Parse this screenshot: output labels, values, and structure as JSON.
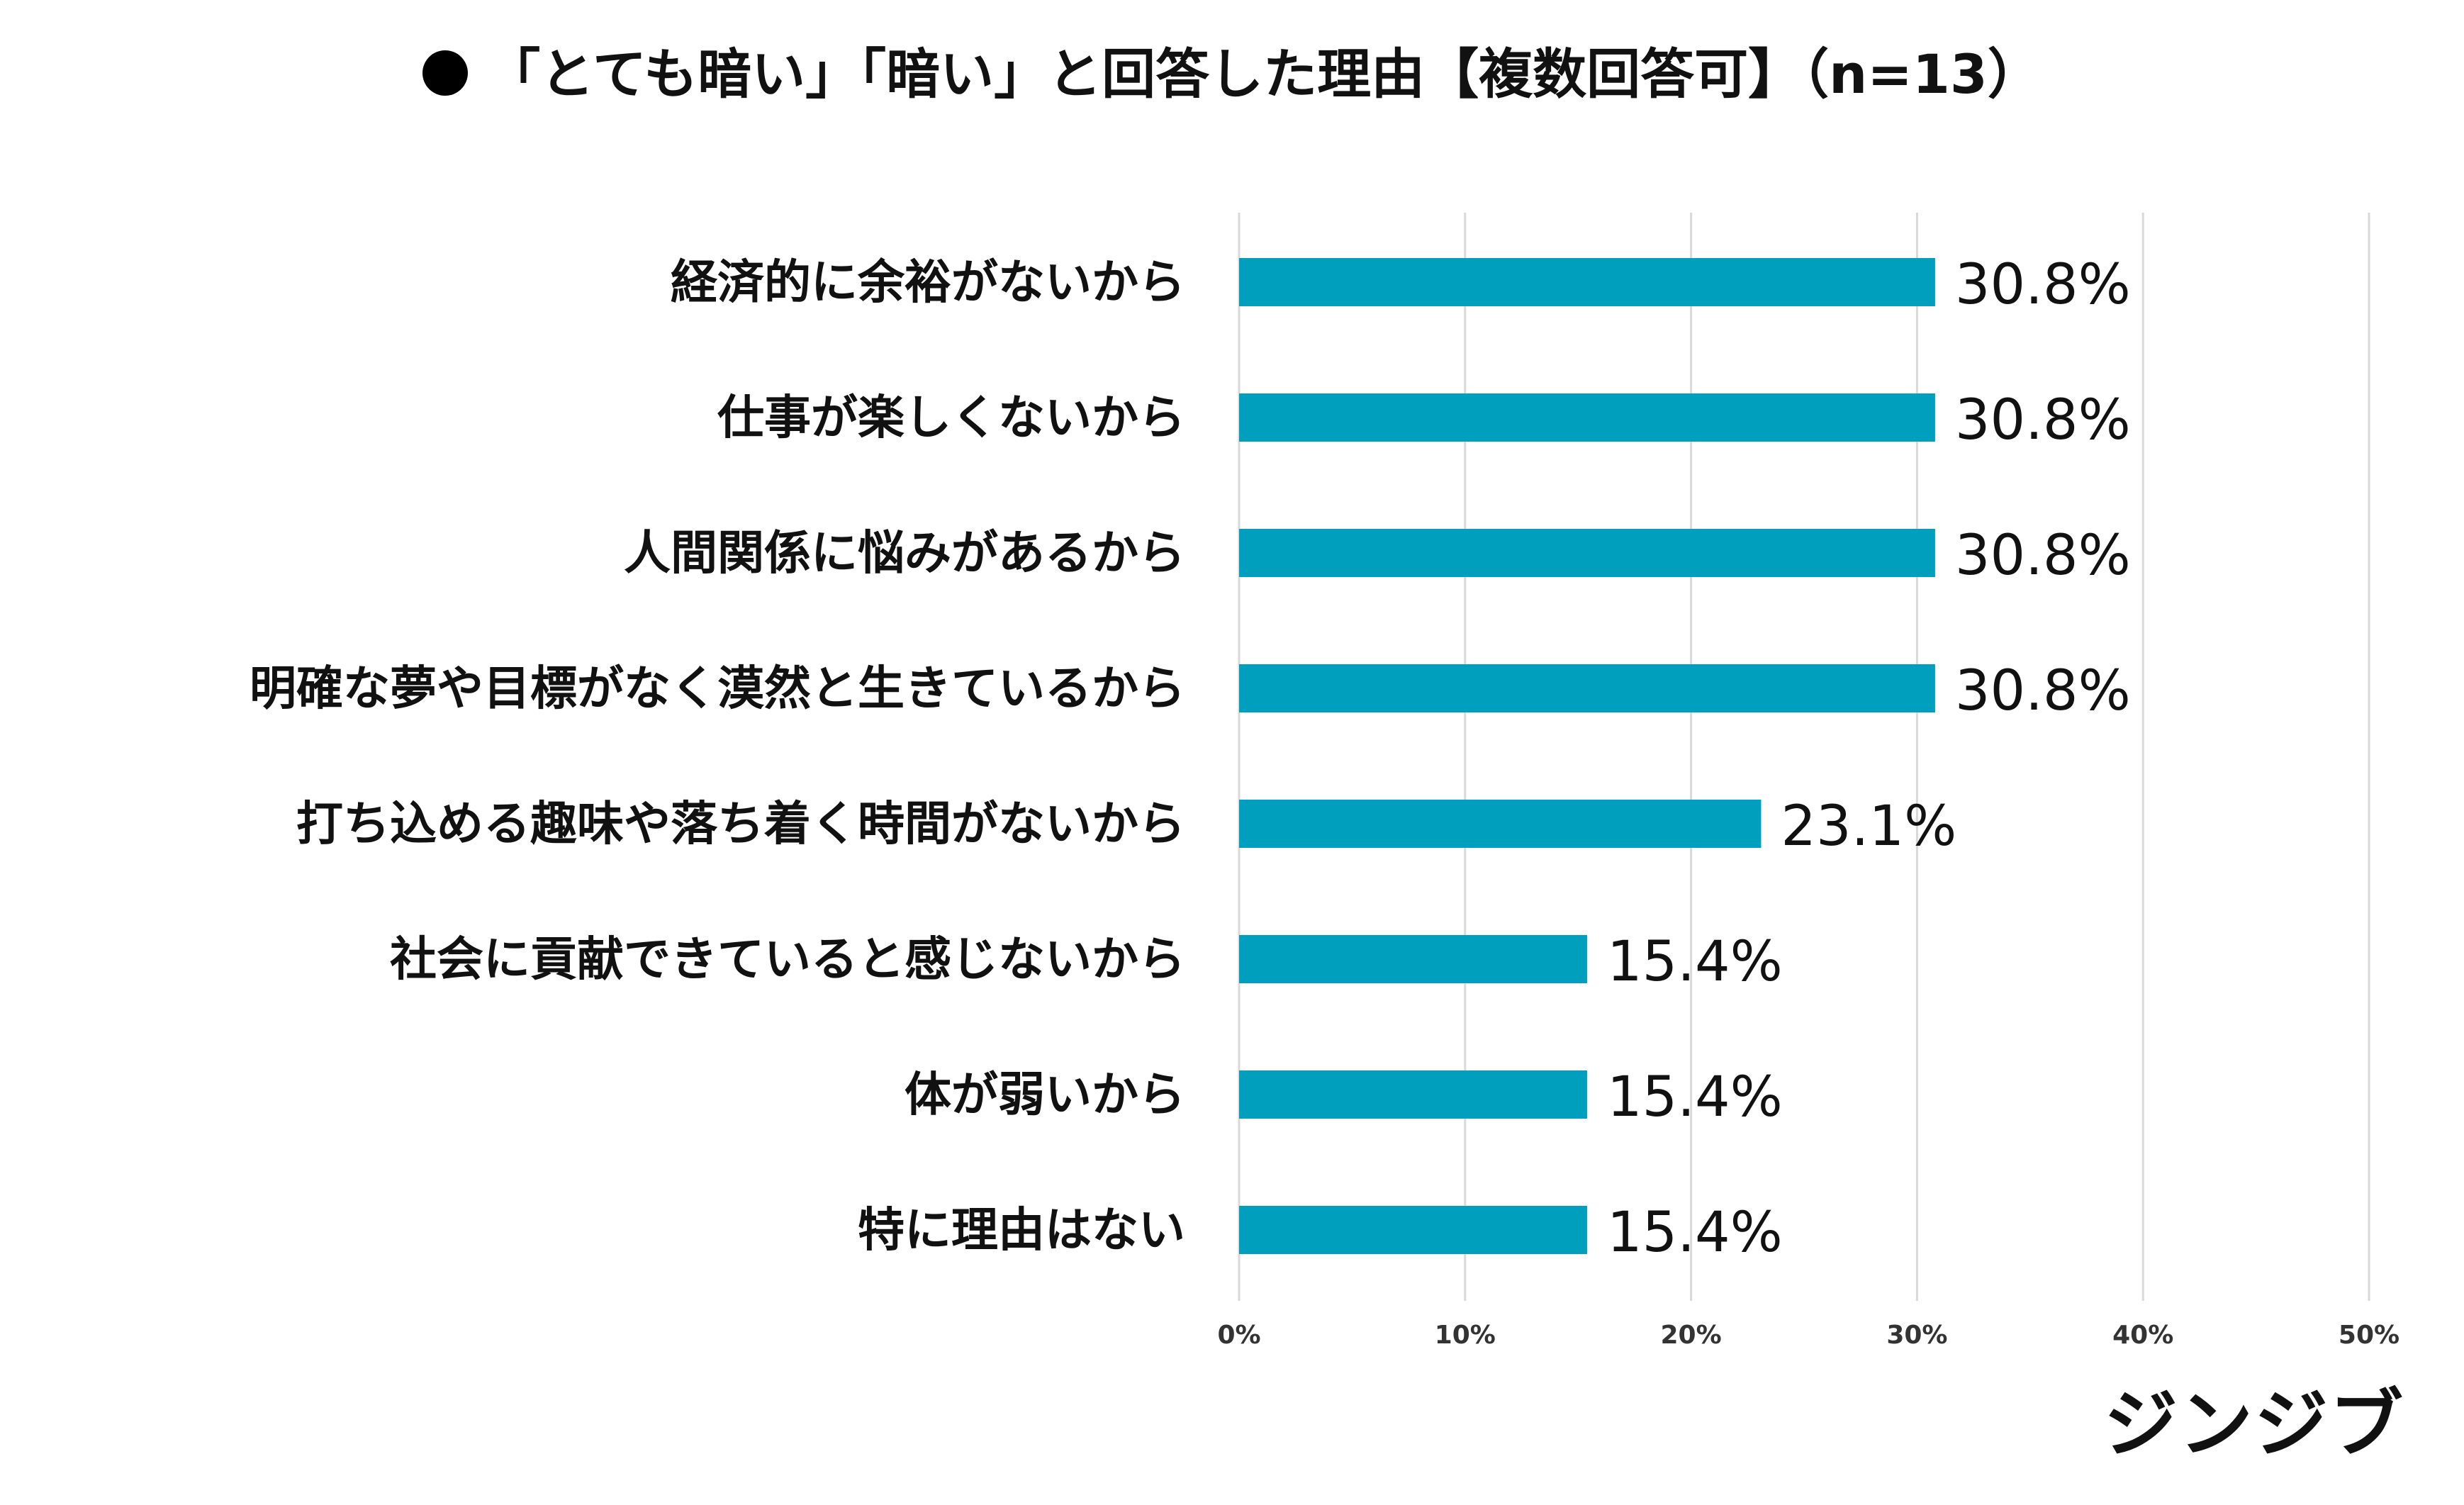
{
  "title": "「とても暗い」「暗い」と回答した理由【複数回答可】（n=13）",
  "logo_text": "ジンジブ",
  "chart_data": {
    "type": "bar",
    "orientation": "horizontal",
    "title": "「とても暗い」「暗い」と回答した理由【複数回答可】（n=13）",
    "categories": [
      "経済的に余裕がないから",
      "仕事が楽しくないから",
      "人間関係に悩みがあるから",
      "明確な夢や目標がなく漠然と生きているから",
      "打ち込める趣味や落ち着く時間がないから",
      "社会に貢献できていると感じないから",
      "体が弱いから",
      "特に理由はない"
    ],
    "values": [
      30.8,
      30.8,
      30.8,
      30.8,
      23.1,
      15.4,
      15.4,
      15.4
    ],
    "value_labels": [
      "30.8%",
      "30.8%",
      "30.8%",
      "30.8%",
      "23.1%",
      "15.4%",
      "15.4%",
      "15.4%"
    ],
    "xlim": [
      0,
      50
    ],
    "xticks": [
      0,
      10,
      20,
      30,
      40,
      50
    ],
    "xtick_labels": [
      "0%",
      "10%",
      "20%",
      "30%",
      "40%",
      "50%"
    ],
    "xlabel": "",
    "ylabel": "",
    "grid": true,
    "legend": "none",
    "bar_color": "#009FBD",
    "grid_color": "#D9D9D9"
  }
}
